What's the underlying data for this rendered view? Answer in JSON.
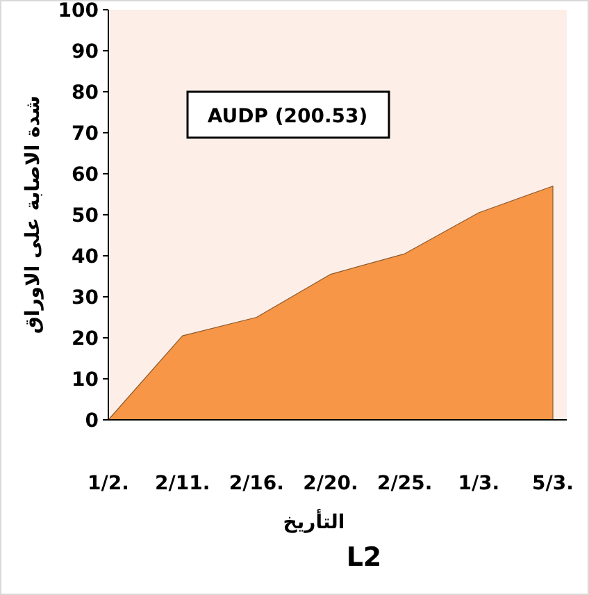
{
  "chart_data": {
    "type": "area",
    "categories": [
      "1/2.",
      "2/11.",
      "2/16.",
      "2/20.",
      "2/25.",
      "1/3.",
      "5/3."
    ],
    "series": [
      {
        "color": "#f79646",
        "values": [
          0,
          20.5,
          25,
          35.5,
          40.5,
          50.5,
          57
        ]
      }
    ],
    "ylim": [
      0,
      100
    ],
    "yticks": [
      0,
      10,
      20,
      30,
      40,
      50,
      60,
      70,
      80,
      90,
      100
    ],
    "xlabel": "التأريخ",
    "ylabel": "شدة الاصابة على الاوراق",
    "annotations": [
      "AUDP (200.53)",
      "L2"
    ],
    "grid": false
  }
}
